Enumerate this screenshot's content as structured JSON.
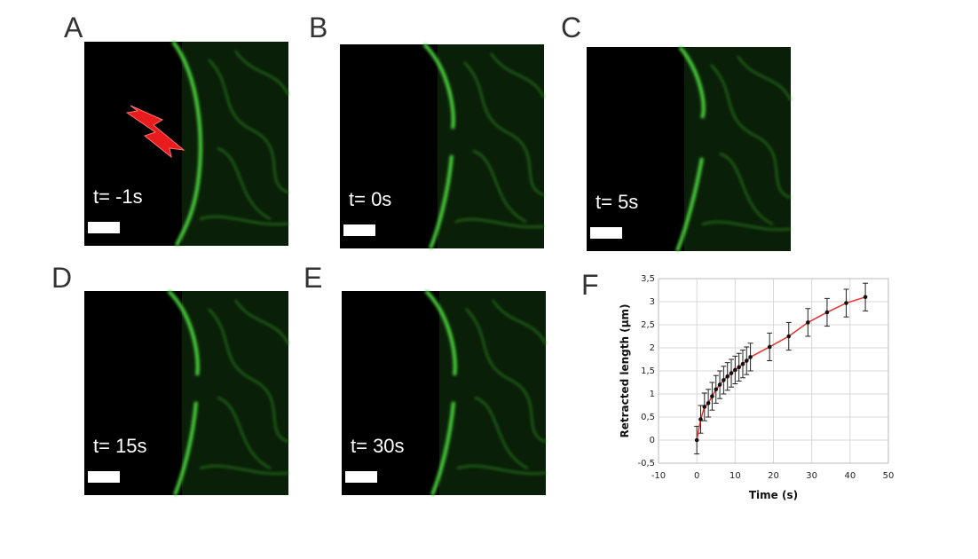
{
  "panels": [
    {
      "label": "A",
      "time": "t= -1s"
    },
    {
      "label": "B",
      "time": "t= 0s"
    },
    {
      "label": "C",
      "time": "t= 5s"
    },
    {
      "label": "D",
      "time": "t= 15s"
    },
    {
      "label": "E",
      "time": "t= 30s"
    }
  ],
  "chart_data": {
    "type": "line",
    "panel_label": "F",
    "x_label": "Time (s)",
    "y_label": "Retracted length (µm)",
    "x": [
      0,
      1,
      2,
      3,
      4,
      5,
      6,
      7,
      8,
      9,
      10,
      11,
      12,
      13,
      14,
      19,
      24,
      29,
      34,
      39,
      44
    ],
    "values": [
      0,
      0.45,
      0.72,
      0.8,
      0.95,
      1.1,
      1.2,
      1.3,
      1.38,
      1.45,
      1.52,
      1.58,
      1.65,
      1.72,
      1.8,
      2.02,
      2.25,
      2.55,
      2.77,
      2.97,
      3.1
    ],
    "errors": [
      0.3,
      0.3,
      0.3,
      0.3,
      0.3,
      0.3,
      0.3,
      0.3,
      0.3,
      0.3,
      0.3,
      0.3,
      0.3,
      0.3,
      0.3,
      0.3,
      0.3,
      0.3,
      0.3,
      0.3,
      0.3
    ],
    "color": "#e8342c",
    "marker_color": "#111111",
    "xlim": [
      -10,
      50
    ],
    "xticks": [
      -10,
      0,
      10,
      20,
      30,
      40,
      50
    ],
    "ylim": [
      -0.5,
      3.5
    ],
    "yticks": [
      {
        "value": -0.5,
        "label": "-0,5"
      },
      0,
      {
        "value": 0.5,
        "label": "0,5"
      },
      1,
      {
        "value": 1.5,
        "label": "1,5"
      },
      2,
      {
        "value": 2.5,
        "label": "2,5"
      },
      3,
      {
        "value": 3.5,
        "label": "3,5"
      }
    ],
    "grid": true
  }
}
